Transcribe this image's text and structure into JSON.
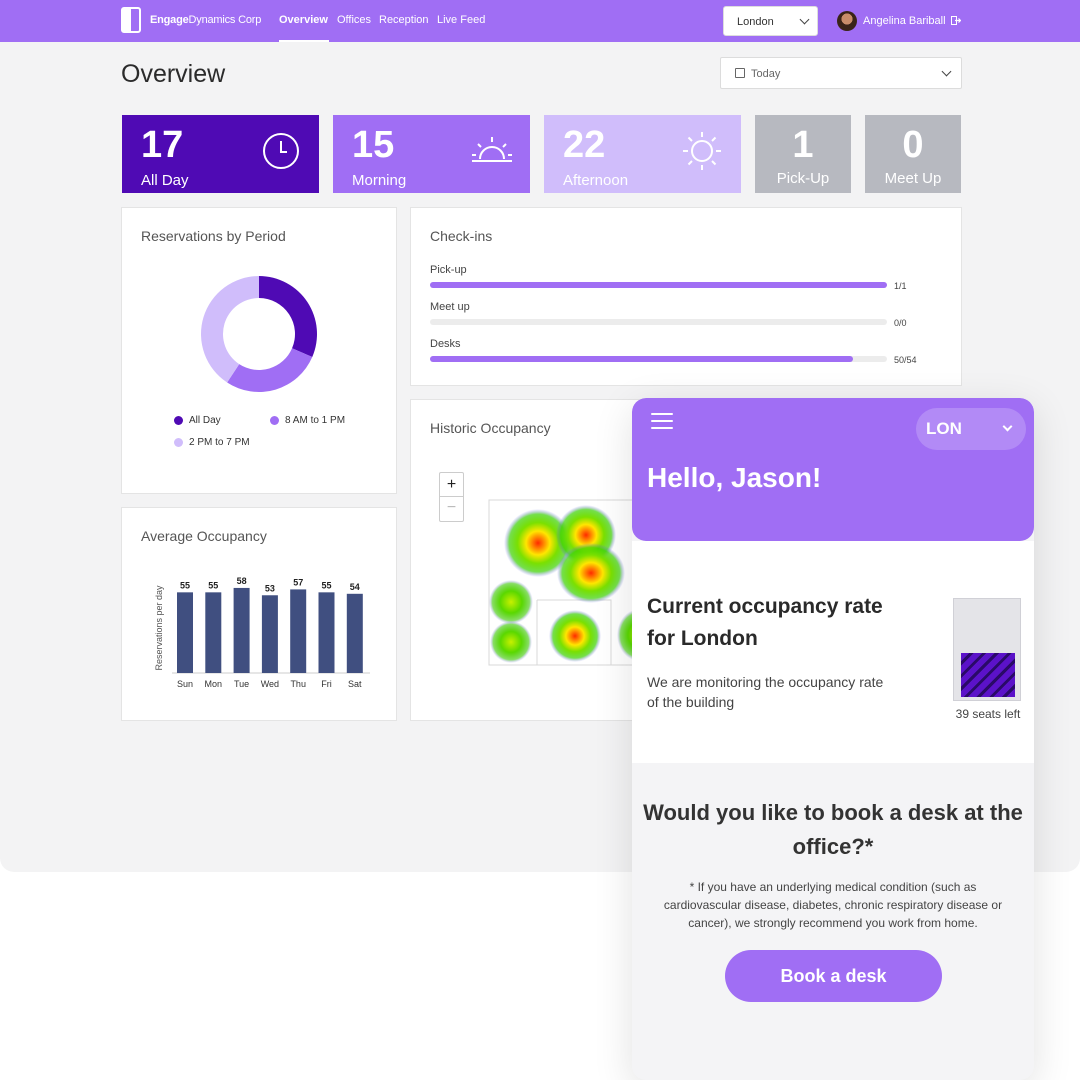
{
  "topbar": {
    "brand_bold": "Engage",
    "brand_rest": "Dynamics Corp",
    "nav": [
      "Overview",
      "Offices",
      "Reception",
      "Live Feed"
    ],
    "city": "London",
    "user": "Angelina Bariball"
  },
  "page": {
    "title": "Overview",
    "date": "Today"
  },
  "kpis": [
    {
      "value": "17",
      "label": "All Day",
      "color": "#4f0ab4"
    },
    {
      "value": "15",
      "label": "Morning",
      "color": "#a06ef4"
    },
    {
      "value": "22",
      "label": "Afternoon",
      "color": "#d0bdfb"
    },
    {
      "value": "1",
      "label": "Pick-Up",
      "color": "#b7b9c0"
    },
    {
      "value": "0",
      "label": "Meet Up",
      "color": "#b7b9c0"
    }
  ],
  "reservations": {
    "title": "Reservations by Period",
    "legend": [
      "All Day",
      "8 AM to 1 PM",
      "2 PM to 7 PM"
    ]
  },
  "checkins": {
    "title": "Check-ins",
    "items": [
      {
        "label": "Pick-up",
        "value": "1/1",
        "progress": 1.0
      },
      {
        "label": "Meet up",
        "value": "0/0",
        "progress": 0
      },
      {
        "label": "Desks",
        "value": "50/54",
        "progress": 0.926
      }
    ]
  },
  "historic": {
    "title": "Historic Occupancy",
    "zoom_in": "+",
    "zoom_out": "−"
  },
  "average": {
    "title": "Average Occupancy"
  },
  "chart_data": [
    {
      "type": "pie",
      "title": "Reservations by Period",
      "labels": [
        "All Day",
        "8 AM to 1 PM",
        "2 PM to 7 PM"
      ],
      "values": [
        17,
        15,
        22
      ],
      "colors": [
        "#4f0ab4",
        "#a06ef4",
        "#d0bdfb"
      ]
    },
    {
      "type": "bar",
      "title": "Average Occupancy",
      "ylabel": "Reservations per day",
      "categories": [
        "Sun",
        "Mon",
        "Tue",
        "Wed",
        "Thu",
        "Fri",
        "Sat"
      ],
      "values": [
        55,
        55,
        58,
        53,
        57,
        55,
        54
      ],
      "ylim": [
        0,
        60
      ],
      "color": "#404f80"
    }
  ],
  "mobile": {
    "city_code": "LON",
    "greeting": "Hello, Jason!",
    "occ_title": "Current occupancy rate for London",
    "occ_sub": "We are monitoring the occupancy rate of the building",
    "occ_level": 0.45,
    "seats_left": "39 seats left",
    "question": "Would you like to book a desk at the office?*",
    "note": "* If you have an underlying medical condition (such as cardiovascular disease, diabetes, chronic respiratory disease or cancer), we strongly recommend you work from home.",
    "book_label": "Book a desk"
  }
}
